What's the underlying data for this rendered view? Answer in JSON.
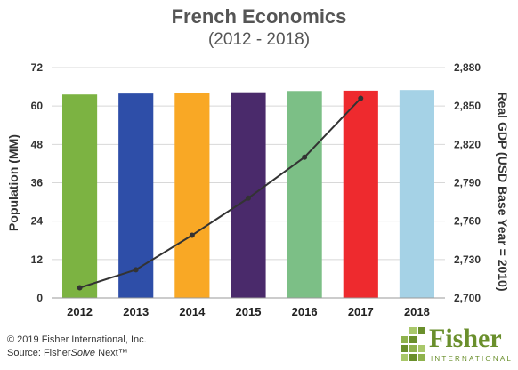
{
  "chart_data": {
    "type": "bar",
    "title": "French Economics",
    "subtitle": "(2012 - 2018)",
    "categories": [
      "2012",
      "2013",
      "2014",
      "2015",
      "2016",
      "2017",
      "2018"
    ],
    "ylabel_left": "Population (MM)",
    "ylabel_right": "Real GDP (USD Base Year = 2010)",
    "ylim_left": [
      0,
      72
    ],
    "ylim_right": [
      2700,
      2880
    ],
    "yticks_left": [
      "0",
      "12",
      "24",
      "36",
      "48",
      "60",
      "72"
    ],
    "yticks_right": [
      "2,700",
      "2,730",
      "2,760",
      "2,790",
      "2,820",
      "2,850",
      "2,880"
    ],
    "series": [
      {
        "name": "Population (MM)",
        "kind": "bar",
        "axis": "left",
        "values": [
          63.6,
          63.9,
          64.1,
          64.3,
          64.7,
          64.8,
          65.0
        ],
        "colors": [
          "#7cb342",
          "#2e4ea8",
          "#f9a825",
          "#4a2a6b",
          "#7cbf86",
          "#ee2a2e",
          "#a5d2e6"
        ]
      },
      {
        "name": "Real GDP (USD Base Year = 2010)",
        "kind": "line",
        "axis": "right",
        "values": [
          2708,
          2722,
          2749,
          2778,
          2810,
          2856,
          null
        ],
        "color": "#333333"
      }
    ],
    "grid": true
  },
  "footer": {
    "copyright": "© 2019 Fisher International, Inc.",
    "source_prefix": "Source: Fisher",
    "source_italic": "Solve",
    "source_suffix": " Next™"
  },
  "logo": {
    "word": "Fisher",
    "sub": "INTERNATIONAL",
    "color": "#6a8f2c"
  }
}
